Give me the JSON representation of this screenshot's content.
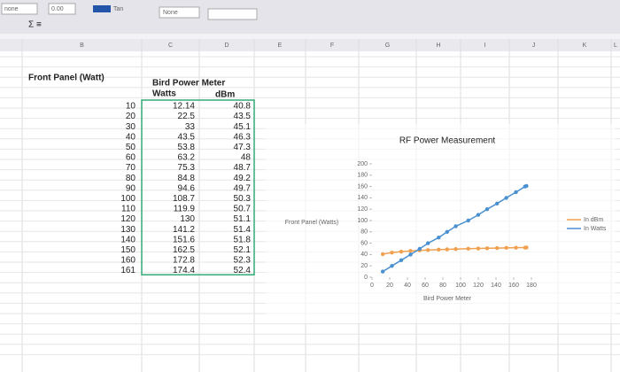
{
  "toolbar": {
    "font": "none",
    "number_format": "0.00",
    "fill": "Tan",
    "border": "None"
  },
  "columns": [
    "B",
    "C",
    "D",
    "E",
    "F",
    "G",
    "H",
    "I",
    "J",
    "K",
    "L"
  ],
  "table": {
    "header": {
      "front_panel": "Front Panel (Watt)",
      "meter": "Bird Power Meter",
      "watts": "Watts",
      "dbm": "dBm"
    },
    "rows": [
      [
        10,
        12.14,
        40.8
      ],
      [
        20,
        22.5,
        43.5
      ],
      [
        30,
        33,
        45.1
      ],
      [
        40,
        43.5,
        46.3
      ],
      [
        50,
        53.8,
        47.3
      ],
      [
        60,
        63.2,
        48
      ],
      [
        70,
        75.3,
        48.7
      ],
      [
        80,
        84.8,
        49.2
      ],
      [
        90,
        94.6,
        49.7
      ],
      [
        100,
        108.7,
        50.3
      ],
      [
        110,
        119.9,
        50.7
      ],
      [
        120,
        130,
        51.1
      ],
      [
        130,
        141.2,
        51.4
      ],
      [
        140,
        151.6,
        51.8
      ],
      [
        150,
        162.5,
        52.1
      ],
      [
        160,
        172.8,
        52.3
      ],
      [
        161,
        174.4,
        52.4
      ]
    ]
  },
  "chart_data": {
    "type": "line",
    "title": "RF Power Measurement",
    "x_label": "Bird Power Meter",
    "y_label": "Front Panel (Watts)",
    "x": [
      12.14,
      22.5,
      33,
      43.5,
      53.8,
      63.2,
      75.3,
      84.8,
      94.6,
      108.7,
      119.9,
      130,
      141.2,
      151.6,
      162.5,
      172.8,
      174.4
    ],
    "series": [
      {
        "name": "In dBm",
        "color": "#f0a050",
        "values": [
          40.8,
          43.5,
          45.1,
          46.3,
          47.3,
          48,
          48.7,
          49.2,
          49.7,
          50.3,
          50.7,
          51.1,
          51.4,
          51.8,
          52.1,
          52.3,
          52.4
        ]
      },
      {
        "name": "In Watts",
        "color": "#4a90d0",
        "values": [
          10,
          20,
          30,
          40,
          50,
          60,
          70,
          80,
          90,
          100,
          110,
          120,
          130,
          140,
          150,
          160,
          161
        ]
      }
    ],
    "xlim": [
      0,
      180
    ],
    "xticks": [
      0,
      20,
      40,
      60,
      80,
      100,
      120,
      140,
      160,
      180
    ],
    "ylim": [
      0,
      200
    ],
    "yticks": [
      0,
      20,
      40,
      60,
      80,
      100,
      120,
      140,
      160,
      180,
      200
    ]
  }
}
